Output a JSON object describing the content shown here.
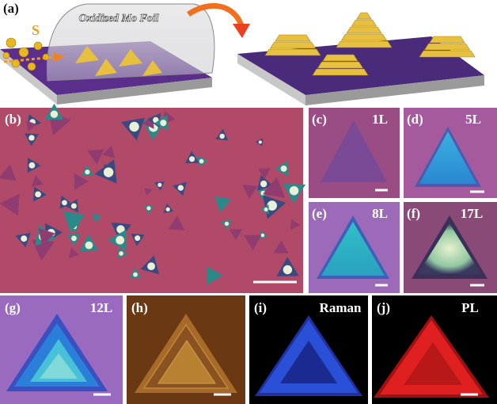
{
  "panels": {
    "a": {
      "label": "(a)",
      "source": "S",
      "foil": "Oxidized Mo Foil"
    },
    "b": {
      "label": "(b)"
    },
    "c": {
      "label": "(c)",
      "layers": "1L"
    },
    "d": {
      "label": "(d)",
      "layers": "5L"
    },
    "e": {
      "label": "(e)",
      "layers": "8L"
    },
    "f": {
      "label": "(f)",
      "layers": "17L"
    },
    "g": {
      "label": "(g)",
      "layers": "12L"
    },
    "h": {
      "label": "(h)"
    },
    "i": {
      "label": "(i)",
      "mode": "Raman"
    },
    "j": {
      "label": "(j)",
      "mode": "PL"
    }
  }
}
